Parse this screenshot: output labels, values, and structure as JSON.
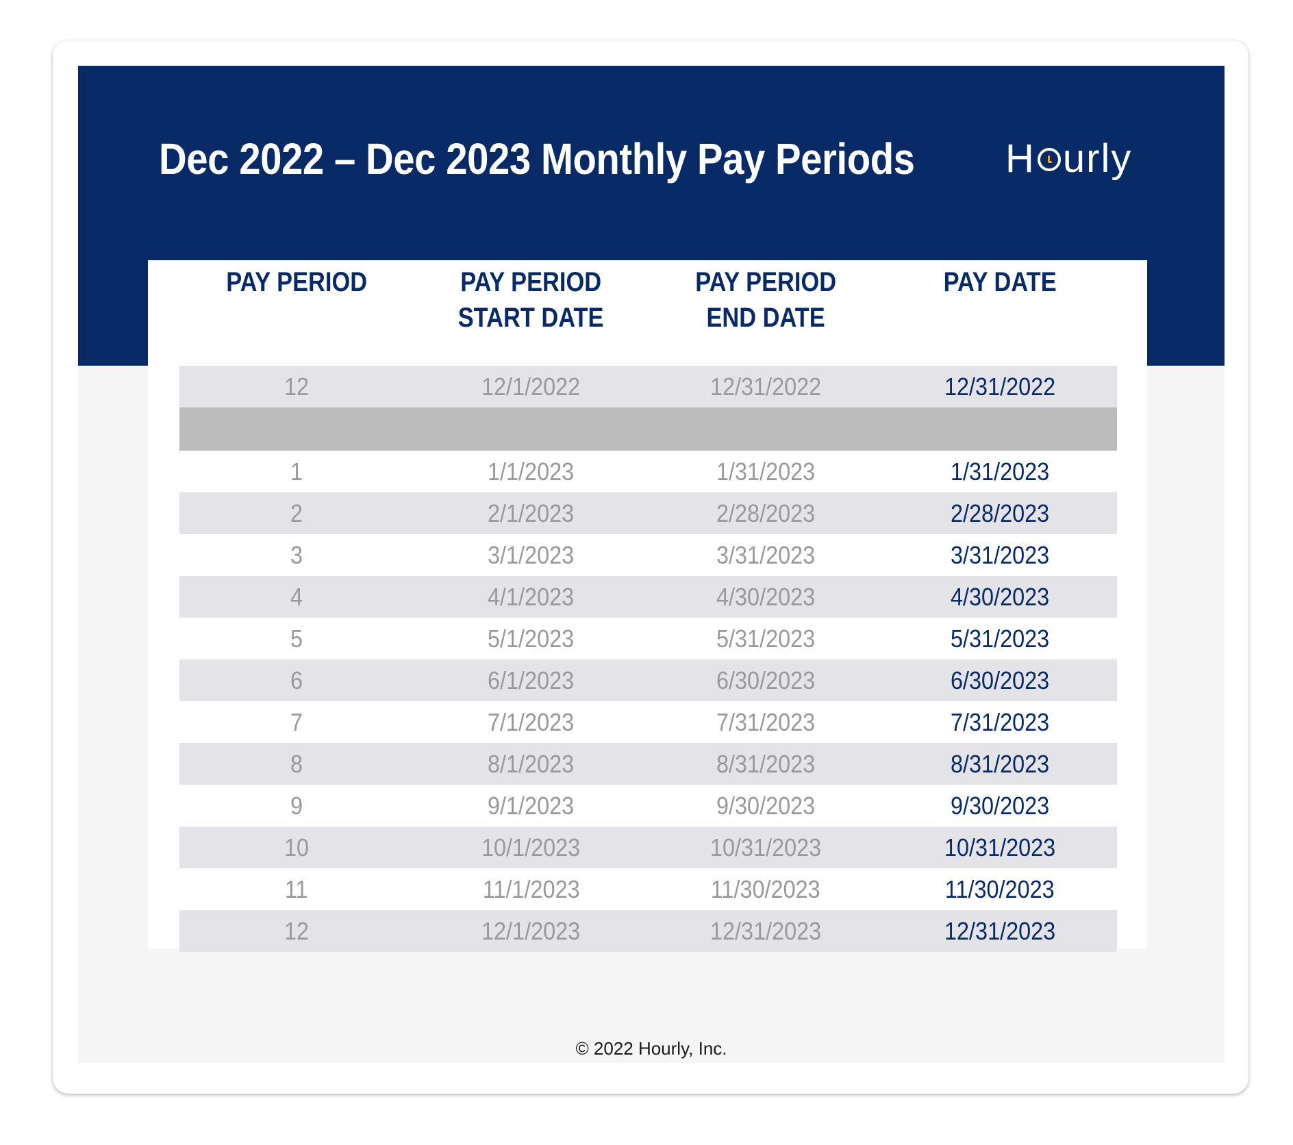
{
  "header": {
    "title": "Dec 2022 – Dec 2023 Monthly Pay Periods",
    "logo": {
      "pre": "H",
      "post": "urly",
      "full_text": "Hourly",
      "clock_hand_color": "#f5a31a"
    }
  },
  "colors": {
    "brand_navy": "#082a66",
    "stripe": "#e4e4e8",
    "separator": "#bcbcbc",
    "muted_text": "#999999",
    "page_bg": "#f5f5f5"
  },
  "table": {
    "columns": [
      {
        "line1": "PAY PERIOD",
        "line2": ""
      },
      {
        "line1": "PAY PERIOD",
        "line2": "START DATE"
      },
      {
        "line1": "PAY PERIOD",
        "line2": "END DATE"
      },
      {
        "line1": "PAY DATE",
        "line2": ""
      }
    ],
    "prior_year_rows": [
      {
        "period": "12",
        "start": "12/1/2022",
        "end": "12/31/2022",
        "pay_date": "12/31/2022"
      }
    ],
    "rows": [
      {
        "period": "1",
        "start": "1/1/2023",
        "end": "1/31/2023",
        "pay_date": "1/31/2023"
      },
      {
        "period": "2",
        "start": "2/1/2023",
        "end": "2/28/2023",
        "pay_date": "2/28/2023"
      },
      {
        "period": "3",
        "start": "3/1/2023",
        "end": "3/31/2023",
        "pay_date": "3/31/2023"
      },
      {
        "period": "4",
        "start": "4/1/2023",
        "end": "4/30/2023",
        "pay_date": "4/30/2023"
      },
      {
        "period": "5",
        "start": "5/1/2023",
        "end": "5/31/2023",
        "pay_date": "5/31/2023"
      },
      {
        "period": "6",
        "start": "6/1/2023",
        "end": "6/30/2023",
        "pay_date": "6/30/2023"
      },
      {
        "period": "7",
        "start": "7/1/2023",
        "end": "7/31/2023",
        "pay_date": "7/31/2023"
      },
      {
        "period": "8",
        "start": "8/1/2023",
        "end": "8/31/2023",
        "pay_date": "8/31/2023"
      },
      {
        "period": "9",
        "start": "9/1/2023",
        "end": "9/30/2023",
        "pay_date": "9/30/2023"
      },
      {
        "period": "10",
        "start": "10/1/2023",
        "end": "10/31/2023",
        "pay_date": "10/31/2023"
      },
      {
        "period": "11",
        "start": "11/1/2023",
        "end": "11/30/2023",
        "pay_date": "11/30/2023"
      },
      {
        "period": "12",
        "start": "12/1/2023",
        "end": "12/31/2023",
        "pay_date": "12/31/2023"
      }
    ]
  },
  "footer": {
    "copyright": "© 2022 Hourly, Inc."
  }
}
